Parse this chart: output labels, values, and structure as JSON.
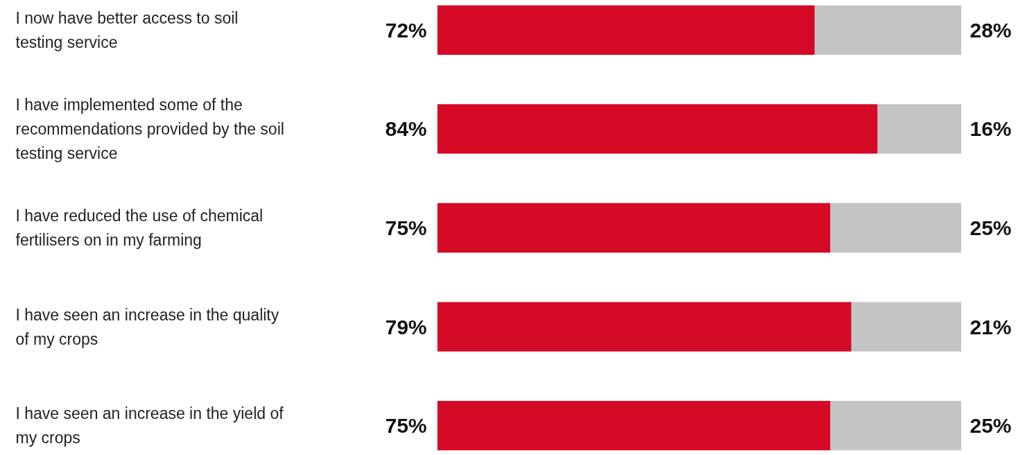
{
  "chart_data": {
    "type": "bar",
    "orientation": "horizontal",
    "stacked": true,
    "categories": [
      "I now have better access to soil testing service",
      "I have implemented some of the recommendations provided by the soil testing service",
      "I have reduced the use of chemical fertilisers on in my farming",
      "I have seen an increase in the quality of my crops",
      "I have seen an increase in the yield of my crops"
    ],
    "series": [
      {
        "color": "#d40a26",
        "values": [
          72,
          84,
          75,
          79,
          75
        ],
        "value_labels": [
          "72%",
          "84%",
          "75%",
          "79%",
          "75%"
        ]
      },
      {
        "color": "#c4c4c4",
        "values": [
          28,
          16,
          25,
          21,
          25
        ],
        "value_labels": [
          "28%",
          "16%",
          "25%",
          "21%",
          "25%"
        ]
      }
    ],
    "xlim": [
      0,
      100
    ],
    "tick_labels": false,
    "grid": false
  }
}
